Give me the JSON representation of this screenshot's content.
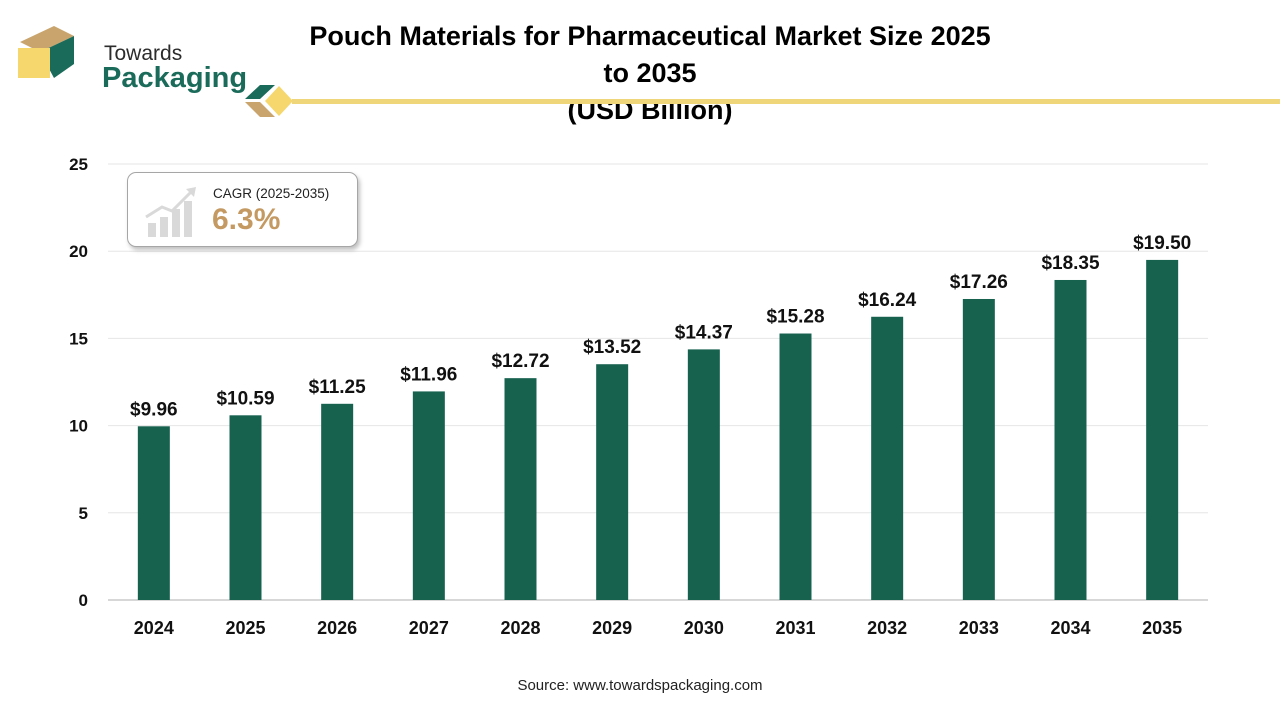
{
  "brand": {
    "line1": "Towards",
    "line2": "Packaging",
    "colors": {
      "green": "#1b6b5a",
      "tan": "#c9a46d",
      "yellow": "#f5d76e"
    }
  },
  "title": {
    "line1": "Pouch Materials for Pharmaceutical Market Size 2025 to 2035",
    "line2": "(USD Billion)"
  },
  "cagr": {
    "label": "CAGR (2025-2035)",
    "value": "6.3%",
    "icon": "bar-growth-icon",
    "value_color": "#c49a62"
  },
  "chart_data": {
    "type": "bar",
    "categories": [
      "2024",
      "2025",
      "2026",
      "2027",
      "2028",
      "2029",
      "2030",
      "2031",
      "2032",
      "2033",
      "2034",
      "2035"
    ],
    "values": [
      9.96,
      10.59,
      11.25,
      11.96,
      12.72,
      13.52,
      14.37,
      15.28,
      16.24,
      17.26,
      18.35,
      19.5
    ],
    "value_labels": [
      "$9.96",
      "$10.59",
      "$11.25",
      "$11.96",
      "$12.72",
      "$13.52",
      "$14.37",
      "$15.28",
      "$16.24",
      "$17.26",
      "$18.35",
      "$19.50"
    ],
    "y_ticks": [
      "0",
      "5",
      "10",
      "15",
      "20",
      "25"
    ],
    "ylim": [
      0,
      25
    ],
    "grid": true,
    "bar_color": "#17614f",
    "title": "Pouch Materials for Pharmaceutical Market Size 2025 to 2035 (USD Billion)",
    "xlabel": "",
    "ylabel": ""
  },
  "source": "Source: www.towardspackaging.com"
}
